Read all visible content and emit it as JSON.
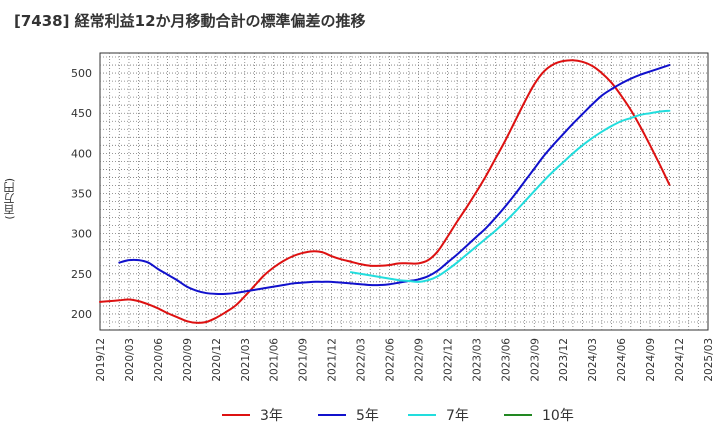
{
  "chart_data": {
    "type": "line",
    "title": "[7438]  経常利益12か月移動合計の標準偏差の推移",
    "ylabel": "(百万円)",
    "xlabel": "",
    "ylim": [
      180,
      525
    ],
    "yticks": [
      200,
      250,
      300,
      350,
      400,
      450,
      500
    ],
    "x_start": "2019/12",
    "x_end": "2025/03",
    "xticks": [
      "2019/12",
      "2020/03",
      "2020/06",
      "2020/09",
      "2020/12",
      "2021/03",
      "2021/06",
      "2021/09",
      "2021/12",
      "2022/03",
      "2022/06",
      "2022/09",
      "2022/12",
      "2023/03",
      "2023/06",
      "2023/09",
      "2023/12",
      "2024/03",
      "2024/06",
      "2024/09",
      "2024/12",
      "2025/03"
    ],
    "grid": true,
    "legend_position": "bottom",
    "series": [
      {
        "name": "3年",
        "color": "#dd1111",
        "points": [
          [
            "2019/12",
            215
          ],
          [
            "2020/01",
            216
          ],
          [
            "2020/02",
            217
          ],
          [
            "2020/03",
            218
          ],
          [
            "2020/04",
            216
          ],
          [
            "2020/05",
            212
          ],
          [
            "2020/06",
            207
          ],
          [
            "2020/07",
            201
          ],
          [
            "2020/08",
            196
          ],
          [
            "2020/09",
            191
          ],
          [
            "2020/10",
            189
          ],
          [
            "2020/11",
            190
          ],
          [
            "2020/12",
            195
          ],
          [
            "2021/01",
            202
          ],
          [
            "2021/02",
            210
          ],
          [
            "2021/03",
            222
          ],
          [
            "2021/04",
            235
          ],
          [
            "2021/05",
            248
          ],
          [
            "2021/06",
            258
          ],
          [
            "2021/07",
            266
          ],
          [
            "2021/08",
            272
          ],
          [
            "2021/09",
            276
          ],
          [
            "2021/10",
            278
          ],
          [
            "2021/11",
            277
          ],
          [
            "2021/12",
            272
          ],
          [
            "2022/01",
            268
          ],
          [
            "2022/02",
            265
          ],
          [
            "2022/03",
            262
          ],
          [
            "2022/04",
            260
          ],
          [
            "2022/05",
            260
          ],
          [
            "2022/06",
            261
          ],
          [
            "2022/07",
            263
          ],
          [
            "2022/08",
            263
          ],
          [
            "2022/09",
            263
          ],
          [
            "2022/10",
            267
          ],
          [
            "2022/11",
            278
          ],
          [
            "2022/12",
            296
          ],
          [
            "2023/01",
            315
          ],
          [
            "2023/02",
            333
          ],
          [
            "2023/03",
            352
          ],
          [
            "2023/04",
            372
          ],
          [
            "2023/05",
            394
          ],
          [
            "2023/06",
            416
          ],
          [
            "2023/07",
            440
          ],
          [
            "2023/08",
            464
          ],
          [
            "2023/09",
            486
          ],
          [
            "2023/10",
            502
          ],
          [
            "2023/11",
            511
          ],
          [
            "2023/12",
            515
          ],
          [
            "2024/01",
            516
          ],
          [
            "2024/02",
            514
          ],
          [
            "2024/03",
            509
          ],
          [
            "2024/04",
            500
          ],
          [
            "2024/05",
            488
          ],
          [
            "2024/06",
            472
          ],
          [
            "2024/07",
            454
          ],
          [
            "2024/08",
            433
          ],
          [
            "2024/09",
            410
          ],
          [
            "2024/10",
            386
          ],
          [
            "2024/11",
            361
          ]
        ]
      },
      {
        "name": "5年",
        "color": "#1111cc",
        "points": [
          [
            "2020/02",
            264
          ],
          [
            "2020/03",
            267
          ],
          [
            "2020/04",
            267
          ],
          [
            "2020/05",
            264
          ],
          [
            "2020/06",
            256
          ],
          [
            "2020/07",
            249
          ],
          [
            "2020/08",
            242
          ],
          [
            "2020/09",
            234
          ],
          [
            "2020/10",
            229
          ],
          [
            "2020/11",
            226
          ],
          [
            "2020/12",
            225
          ],
          [
            "2021/01",
            225
          ],
          [
            "2021/02",
            226
          ],
          [
            "2021/03",
            228
          ],
          [
            "2021/04",
            230
          ],
          [
            "2021/05",
            232
          ],
          [
            "2021/06",
            234
          ],
          [
            "2021/07",
            236
          ],
          [
            "2021/08",
            238
          ],
          [
            "2021/09",
            239
          ],
          [
            "2021/10",
            240
          ],
          [
            "2021/11",
            240
          ],
          [
            "2021/12",
            240
          ],
          [
            "2022/01",
            239
          ],
          [
            "2022/02",
            238
          ],
          [
            "2022/03",
            237
          ],
          [
            "2022/04",
            236
          ],
          [
            "2022/05",
            236
          ],
          [
            "2022/06",
            237
          ],
          [
            "2022/07",
            239
          ],
          [
            "2022/08",
            241
          ],
          [
            "2022/09",
            243
          ],
          [
            "2022/10",
            247
          ],
          [
            "2022/11",
            254
          ],
          [
            "2022/12",
            264
          ],
          [
            "2023/01",
            274
          ],
          [
            "2023/02",
            285
          ],
          [
            "2023/03",
            296
          ],
          [
            "2023/04",
            307
          ],
          [
            "2023/05",
            320
          ],
          [
            "2023/06",
            334
          ],
          [
            "2023/07",
            349
          ],
          [
            "2023/08",
            365
          ],
          [
            "2023/09",
            381
          ],
          [
            "2023/10",
            397
          ],
          [
            "2023/11",
            411
          ],
          [
            "2023/12",
            424
          ],
          [
            "2024/01",
            437
          ],
          [
            "2024/02",
            449
          ],
          [
            "2024/03",
            461
          ],
          [
            "2024/04",
            472
          ],
          [
            "2024/05",
            480
          ],
          [
            "2024/06",
            487
          ],
          [
            "2024/07",
            493
          ],
          [
            "2024/08",
            498
          ],
          [
            "2024/09",
            502
          ],
          [
            "2024/10",
            506
          ],
          [
            "2024/11",
            510
          ]
        ]
      },
      {
        "name": "7年",
        "color": "#22dddd",
        "points": [
          [
            "2022/02",
            252
          ],
          [
            "2022/03",
            250
          ],
          [
            "2022/04",
            248
          ],
          [
            "2022/05",
            246
          ],
          [
            "2022/06",
            244
          ],
          [
            "2022/07",
            242
          ],
          [
            "2022/08",
            241
          ],
          [
            "2022/09",
            240
          ],
          [
            "2022/10",
            242
          ],
          [
            "2022/11",
            247
          ],
          [
            "2022/12",
            255
          ],
          [
            "2023/01",
            264
          ],
          [
            "2023/02",
            274
          ],
          [
            "2023/03",
            284
          ],
          [
            "2023/04",
            294
          ],
          [
            "2023/05",
            304
          ],
          [
            "2023/06",
            315
          ],
          [
            "2023/07",
            327
          ],
          [
            "2023/08",
            340
          ],
          [
            "2023/09",
            353
          ],
          [
            "2023/10",
            366
          ],
          [
            "2023/11",
            378
          ],
          [
            "2023/12",
            389
          ],
          [
            "2024/01",
            400
          ],
          [
            "2024/02",
            410
          ],
          [
            "2024/03",
            419
          ],
          [
            "2024/04",
            427
          ],
          [
            "2024/05",
            434
          ],
          [
            "2024/06",
            440
          ],
          [
            "2024/07",
            444
          ],
          [
            "2024/08",
            448
          ],
          [
            "2024/09",
            450
          ],
          [
            "2024/10",
            452
          ],
          [
            "2024/11",
            453
          ]
        ]
      },
      {
        "name": "10年",
        "color": "#228822",
        "points": []
      }
    ]
  }
}
